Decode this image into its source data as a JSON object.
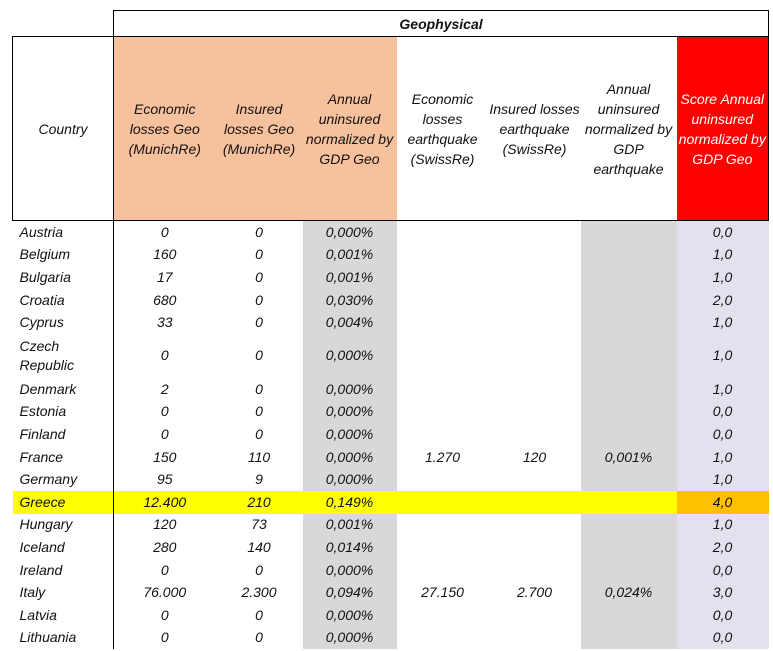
{
  "group_title": "Geophysical",
  "headers": {
    "country": "Country",
    "econ_munich": "Economic losses Geo (MunichRe)",
    "ins_munich": "Insured losses Geo (MunichRe)",
    "annual_geo": "Annual uninsured normalized by GDP Geo",
    "econ_swiss": "Economic losses earthquake (SwissRe)",
    "ins_swiss": "Insured losses earthquake (SwissRe)",
    "annual_eq": "Annual uninsured normalized by GDP earthquake",
    "score": "Score Annual uninsured normalized by GDP Geo"
  },
  "colors": {
    "orange_header": "#f8c19d",
    "red_header": "#ff0000",
    "gray_column": "#d8d8d8",
    "lavender_column": "#e4e0ed",
    "highlight_row": "#ffff00",
    "highlight_score": "#ffc000"
  },
  "rows": [
    {
      "country": "Austria",
      "econ_munich": "0",
      "ins_munich": "0",
      "annual_geo": "0,000%",
      "econ_swiss": "",
      "ins_swiss": "",
      "annual_eq": "",
      "score": "0,0"
    },
    {
      "country": "Belgium",
      "econ_munich": "160",
      "ins_munich": "0",
      "annual_geo": "0,001%",
      "econ_swiss": "",
      "ins_swiss": "",
      "annual_eq": "",
      "score": "1,0"
    },
    {
      "country": "Bulgaria",
      "econ_munich": "17",
      "ins_munich": "0",
      "annual_geo": "0,001%",
      "econ_swiss": "",
      "ins_swiss": "",
      "annual_eq": "",
      "score": "1,0"
    },
    {
      "country": "Croatia",
      "econ_munich": "680",
      "ins_munich": "0",
      "annual_geo": "0,030%",
      "econ_swiss": "",
      "ins_swiss": "",
      "annual_eq": "",
      "score": "2,0"
    },
    {
      "country": "Cyprus",
      "econ_munich": "33",
      "ins_munich": "0",
      "annual_geo": "0,004%",
      "econ_swiss": "",
      "ins_swiss": "",
      "annual_eq": "",
      "score": "1,0"
    },
    {
      "country": "Czech Republic",
      "econ_munich": "0",
      "ins_munich": "0",
      "annual_geo": "0,000%",
      "econ_swiss": "",
      "ins_swiss": "",
      "annual_eq": "",
      "score": "1,0"
    },
    {
      "country": "Denmark",
      "econ_munich": "2",
      "ins_munich": "0",
      "annual_geo": "0,000%",
      "econ_swiss": "",
      "ins_swiss": "",
      "annual_eq": "",
      "score": "1,0"
    },
    {
      "country": "Estonia",
      "econ_munich": "0",
      "ins_munich": "0",
      "annual_geo": "0,000%",
      "econ_swiss": "",
      "ins_swiss": "",
      "annual_eq": "",
      "score": "0,0"
    },
    {
      "country": "Finland",
      "econ_munich": "0",
      "ins_munich": "0",
      "annual_geo": "0,000%",
      "econ_swiss": "",
      "ins_swiss": "",
      "annual_eq": "",
      "score": "0,0"
    },
    {
      "country": "France",
      "econ_munich": "150",
      "ins_munich": "110",
      "annual_geo": "0,000%",
      "econ_swiss": "1.270",
      "ins_swiss": "120",
      "annual_eq": "0,001%",
      "score": "1,0"
    },
    {
      "country": "Germany",
      "econ_munich": "95",
      "ins_munich": "9",
      "annual_geo": "0,000%",
      "econ_swiss": "",
      "ins_swiss": "",
      "annual_eq": "",
      "score": "1,0"
    },
    {
      "country": "Greece",
      "econ_munich": "12.400",
      "ins_munich": "210",
      "annual_geo": "0,149%",
      "econ_swiss": "",
      "ins_swiss": "",
      "annual_eq": "",
      "score": "4,0"
    },
    {
      "country": "Hungary",
      "econ_munich": "120",
      "ins_munich": "73",
      "annual_geo": "0,001%",
      "econ_swiss": "",
      "ins_swiss": "",
      "annual_eq": "",
      "score": "1,0"
    },
    {
      "country": "Iceland",
      "econ_munich": "280",
      "ins_munich": "140",
      "annual_geo": "0,014%",
      "econ_swiss": "",
      "ins_swiss": "",
      "annual_eq": "",
      "score": "2,0"
    },
    {
      "country": "Ireland",
      "econ_munich": "0",
      "ins_munich": "0",
      "annual_geo": "0,000%",
      "econ_swiss": "",
      "ins_swiss": "",
      "annual_eq": "",
      "score": "0,0"
    },
    {
      "country": "Italy",
      "econ_munich": "76.000",
      "ins_munich": "2.300",
      "annual_geo": "0,094%",
      "econ_swiss": "27.150",
      "ins_swiss": "2.700",
      "annual_eq": "0,024%",
      "score": "3,0"
    },
    {
      "country": "Latvia",
      "econ_munich": "0",
      "ins_munich": "0",
      "annual_geo": "0,000%",
      "econ_swiss": "",
      "ins_swiss": "",
      "annual_eq": "",
      "score": "0,0"
    },
    {
      "country": "Lithuania",
      "econ_munich": "0",
      "ins_munich": "0",
      "annual_geo": "0,000%",
      "econ_swiss": "",
      "ins_swiss": "",
      "annual_eq": "",
      "score": "0,0"
    }
  ]
}
